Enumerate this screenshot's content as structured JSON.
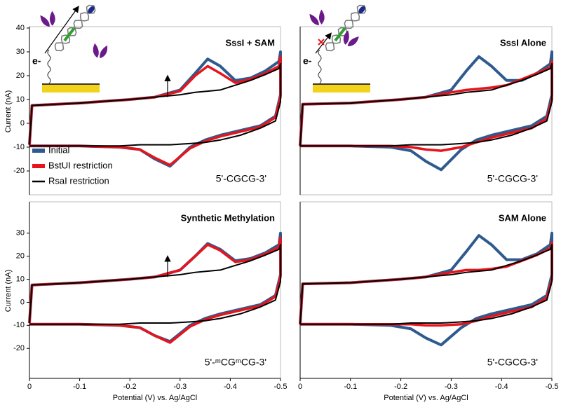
{
  "chart_data": [
    {
      "type": "line",
      "title": "SssI + SAM",
      "annotation": "5'-CGCG-3'",
      "electron_label": "e-",
      "xlim": [
        0,
        -0.5
      ],
      "ylim": [
        -30,
        40
      ],
      "yticks": [
        -20,
        -10,
        0,
        10,
        20,
        30,
        40
      ],
      "ylabel": "Current (nA)",
      "x": [
        0,
        -0.005,
        -0.1,
        -0.2,
        -0.25,
        -0.3,
        -0.33,
        -0.355,
        -0.38,
        -0.41,
        -0.44,
        -0.47,
        -0.497,
        -0.5,
        -0.5,
        -0.49,
        -0.46,
        -0.42,
        -0.38,
        -0.35,
        -0.32,
        -0.28,
        -0.25,
        -0.22,
        -0.18,
        -0.1,
        -0.005,
        0
      ],
      "series": [
        {
          "name": "Initial",
          "color": "#2e5a8e",
          "values": [
            -9,
            7.5,
            8.5,
            10,
            11,
            14,
            21,
            27,
            24,
            18,
            19,
            22,
            26,
            30,
            12,
            3,
            -1,
            -3,
            -5,
            -7,
            -10,
            -18,
            -15,
            -11,
            -10,
            -9.5,
            -9.5,
            -9.5
          ]
        },
        {
          "name": "BstUI restriction",
          "color": "#e8141c",
          "values": [
            -9,
            7.5,
            8.5,
            10,
            11,
            13.5,
            20,
            24,
            21,
            17,
            18.5,
            21,
            24,
            28,
            11,
            2.5,
            -1.5,
            -3.5,
            -5.5,
            -7.5,
            -10.5,
            -17.5,
            -14.5,
            -11,
            -10,
            -9.5,
            -9.5,
            -9.5
          ]
        },
        {
          "name": "RsaI restriction",
          "color": "#000000",
          "values": [
            -9,
            7.5,
            8.5,
            10,
            11,
            12,
            13,
            13.5,
            14,
            16,
            18,
            20.5,
            23,
            25,
            9,
            1,
            -2,
            -5,
            -7,
            -8,
            -8.5,
            -9,
            -9,
            -9,
            -9.5,
            -9.5,
            -9.5,
            -9.5
          ]
        }
      ]
    },
    {
      "type": "line",
      "title": "SssI Alone",
      "annotation": "5'-CGCG-3'",
      "electron_label": "e-",
      "xlim": [
        0,
        -0.5
      ],
      "ylim": [
        -30,
        40
      ],
      "x": [
        0,
        -0.005,
        -0.1,
        -0.2,
        -0.25,
        -0.3,
        -0.33,
        -0.355,
        -0.38,
        -0.41,
        -0.44,
        -0.47,
        -0.497,
        -0.5,
        -0.5,
        -0.49,
        -0.46,
        -0.42,
        -0.38,
        -0.35,
        -0.32,
        -0.28,
        -0.25,
        -0.22,
        -0.18,
        -0.1,
        -0.005,
        0
      ],
      "series": [
        {
          "name": "Initial",
          "color": "#2e5a8e",
          "values": [
            -9.5,
            8,
            8.5,
            10,
            11,
            14,
            22,
            28,
            24,
            18,
            18,
            21,
            25,
            30,
            12,
            3,
            -1,
            -3,
            -5,
            -7,
            -11,
            -19.5,
            -16,
            -11.5,
            -10,
            -9.5,
            -9.5,
            -9.5
          ]
        },
        {
          "name": "BstUI restriction",
          "color": "#e8141c",
          "values": [
            -9.5,
            8,
            8.5,
            10,
            11,
            13,
            14,
            14.5,
            15,
            16,
            18.5,
            21,
            23.5,
            26,
            10,
            2,
            -2,
            -4,
            -6,
            -8,
            -10,
            -11.5,
            -11,
            -10,
            -9.5,
            -9.5,
            -9.5,
            -9.5
          ]
        },
        {
          "name": "RsaI restriction",
          "color": "#000000",
          "values": [
            -9.5,
            8,
            8.5,
            10,
            11,
            12,
            13,
            13.5,
            14,
            16,
            18,
            20.5,
            23,
            25,
            9,
            1,
            -2,
            -5,
            -7,
            -8,
            -8.5,
            -9,
            -9,
            -9,
            -9.5,
            -9.5,
            -9.5,
            -9.5
          ]
        }
      ]
    },
    {
      "type": "line",
      "title": "Synthetic Methylation",
      "annotation": "5'-ᵐCGᵐCG-3'",
      "xlim": [
        0,
        -0.5
      ],
      "ylim": [
        -33,
        43
      ],
      "yticks": [
        -20,
        -10,
        0,
        10,
        20,
        30
      ],
      "xticks": [
        0,
        -0.1,
        -0.2,
        -0.3,
        -0.4,
        -0.5
      ],
      "xlabel": "Potential (V) vs. Ag/AgCl",
      "ylabel": "Current (nA)",
      "x": [
        0,
        -0.005,
        -0.1,
        -0.2,
        -0.25,
        -0.3,
        -0.33,
        -0.355,
        -0.38,
        -0.41,
        -0.44,
        -0.47,
        -0.497,
        -0.5,
        -0.5,
        -0.49,
        -0.46,
        -0.42,
        -0.38,
        -0.35,
        -0.32,
        -0.28,
        -0.25,
        -0.22,
        -0.18,
        -0.1,
        -0.005,
        0
      ],
      "series": [
        {
          "name": "Initial",
          "color": "#2e5a8e",
          "values": [
            -9,
            7.5,
            8.5,
            10,
            11,
            14,
            20,
            25.5,
            23,
            18,
            19,
            21.5,
            25,
            30,
            12,
            3,
            -1,
            -3,
            -5,
            -7,
            -10,
            -17,
            -14.5,
            -11,
            -10,
            -9.5,
            -9.5,
            -9.5
          ]
        },
        {
          "name": "BstUI restriction",
          "color": "#e8141c",
          "values": [
            -9,
            7.5,
            8.5,
            10,
            11,
            14,
            20,
            25,
            22.5,
            17.5,
            18.5,
            21,
            24,
            28,
            11,
            2.5,
            -1.5,
            -3.5,
            -5.5,
            -7.5,
            -10.5,
            -17.5,
            -14.5,
            -11,
            -10,
            -9.5,
            -9.5,
            -9.5
          ]
        },
        {
          "name": "RsaI restriction",
          "color": "#000000",
          "values": [
            -9,
            7.5,
            8.5,
            10,
            11,
            12,
            13,
            13.5,
            14,
            16,
            18,
            20.5,
            23,
            25,
            9,
            1,
            -2,
            -5,
            -7,
            -8,
            -8.5,
            -9,
            -9,
            -9,
            -9.5,
            -9.5,
            -9.5,
            -9.5
          ]
        }
      ]
    },
    {
      "type": "line",
      "title": "SAM Alone",
      "annotation": "5'-CGCG-3'",
      "xlim": [
        0,
        -0.5
      ],
      "ylim": [
        -33,
        43
      ],
      "xticks": [
        0,
        -0.1,
        -0.2,
        -0.3,
        -0.4,
        -0.5
      ],
      "xlabel": "Potential (V) vs. Ag/AgCl",
      "x": [
        0,
        -0.005,
        -0.1,
        -0.2,
        -0.25,
        -0.3,
        -0.33,
        -0.355,
        -0.38,
        -0.41,
        -0.44,
        -0.47,
        -0.497,
        -0.5,
        -0.5,
        -0.49,
        -0.46,
        -0.42,
        -0.38,
        -0.35,
        -0.32,
        -0.28,
        -0.25,
        -0.22,
        -0.18,
        -0.1,
        -0.005,
        0
      ],
      "series": [
        {
          "name": "Initial",
          "color": "#2e5a8e",
          "values": [
            -9.5,
            8,
            8.5,
            10,
            11,
            14,
            22,
            29,
            25,
            18.5,
            18.5,
            21,
            25,
            30,
            12,
            3,
            -1,
            -3,
            -5,
            -7,
            -11,
            -18.5,
            -15.5,
            -11.5,
            -10,
            -9.5,
            -9.5,
            -9.5
          ]
        },
        {
          "name": "BstUI restriction",
          "color": "#e8141c",
          "values": [
            -9.5,
            8,
            8.5,
            10,
            11,
            13,
            14,
            14,
            14.5,
            15.5,
            18,
            20.5,
            23.5,
            26,
            10,
            2,
            -2,
            -4,
            -6,
            -8,
            -9.5,
            -10,
            -10,
            -9.5,
            -9.5,
            -9.5,
            -9.5,
            -9.5
          ]
        },
        {
          "name": "RsaI restriction",
          "color": "#000000",
          "values": [
            -9.5,
            8,
            8.5,
            10,
            11,
            12,
            13,
            13.5,
            14,
            16,
            18,
            20.5,
            23,
            25,
            9,
            1,
            -2,
            -5,
            -7,
            -8,
            -8.5,
            -9,
            -9,
            -9,
            -9.5,
            -9.5,
            -9.5,
            -9.5
          ]
        }
      ]
    }
  ]
}
